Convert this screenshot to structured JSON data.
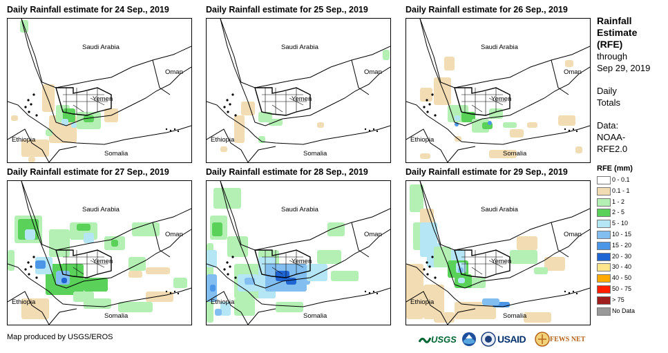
{
  "panels": [
    {
      "title": "Daily Rainfall estimate for 24 Sep., 2019",
      "labels": {
        "saudi": "Saudi Arabia",
        "oman": "Oman",
        "yemen": "Yemen",
        "ethiopia": "Ethiopia",
        "somalia": "Somalia"
      }
    },
    {
      "title": "Daily Rainfall estimate for 25 Sep., 2019",
      "labels": {
        "saudi": "Saudi Arabia",
        "oman": "Oman",
        "yemen": "Yemen",
        "ethiopia": "Ethiopia",
        "somalia": "Somalia"
      }
    },
    {
      "title": "Daily Rainfall estimate for 26 Sep., 2019",
      "labels": {
        "saudi": "Saudi Arabia",
        "oman": "Oman",
        "yemen": "Yemen",
        "ethiopia": "Ethiopia",
        "somalia": "Somalia"
      }
    },
    {
      "title": "Daily Rainfall estimate for 27 Sep., 2019",
      "labels": {
        "saudi": "Saudi Arabia",
        "oman": "Oman",
        "yemen": "Yemen",
        "ethiopia": "Ethiopia",
        "somalia": "Somalia"
      }
    },
    {
      "title": "Daily Rainfall estimate for 28 Sep., 2019",
      "labels": {
        "saudi": "Saudi Arabia",
        "oman": "Oman",
        "yemen": "Yemen",
        "ethiopia": "Ethiopia",
        "somalia": "Somalia"
      }
    },
    {
      "title": "Daily Rainfall estimate for 29 Sep., 2019",
      "labels": {
        "saudi": "Saudi Arabia",
        "oman": "Oman",
        "yemen": "Yemen",
        "ethiopia": "Ethiopia",
        "somalia": "Somalia"
      }
    }
  ],
  "legend": {
    "title_lines": [
      "Rainfall",
      "Estimate",
      "(RFE)"
    ],
    "through": "through",
    "date": "Sep 29, 2019",
    "daily": "Daily",
    "totals": "Totals",
    "data_label": "Data:",
    "data_source_1": "NOAA-",
    "data_source_2": "RFE2.0",
    "units_title": "RFE (mm)",
    "classes": [
      {
        "label": "0 - 0.1",
        "color": "#ffffff"
      },
      {
        "label": "0.1 - 1",
        "color": "#f2dcb4"
      },
      {
        "label": "1 - 2",
        "color": "#b4f0b4"
      },
      {
        "label": "2 - 5",
        "color": "#5ad25a"
      },
      {
        "label": "5 - 10",
        "color": "#b4e6f5"
      },
      {
        "label": "10 - 15",
        "color": "#82bef0"
      },
      {
        "label": "15 - 20",
        "color": "#4b96e6"
      },
      {
        "label": "20 - 30",
        "color": "#1e64d2"
      },
      {
        "label": "30 - 40",
        "color": "#ffe68c"
      },
      {
        "label": "40 - 50",
        "color": "#ffaa00"
      },
      {
        "label": "50 - 75",
        "color": "#ff1e00"
      },
      {
        "label": "> 75",
        "color": "#a01e1e"
      },
      {
        "label": "No Data",
        "color": "#999999"
      }
    ]
  },
  "credit": "Map produced by USGS/EROS",
  "logos": {
    "usgs": "USGS",
    "noaa": "NOAA",
    "usaid": "USAID",
    "fews": "FEWS NET"
  }
}
